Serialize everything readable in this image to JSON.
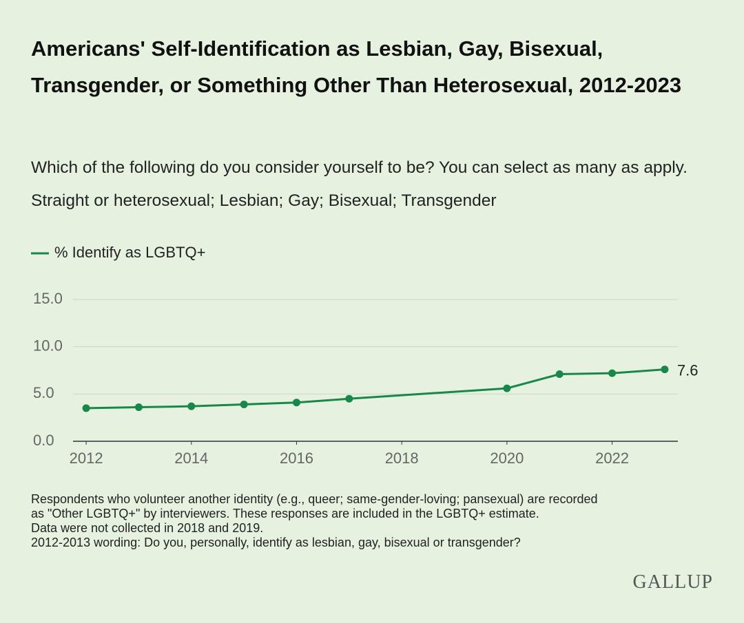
{
  "chart_data": {
    "type": "line",
    "title": "Americans' Self-Identification as Lesbian, Gay, Bisexual, Transgender, or Something Other Than Heterosexual, 2012-2023",
    "subtitle": "Which of the following do you consider yourself to be? You can select as many as apply. Straight or heterosexual; Lesbian; Gay; Bisexual; Transgender",
    "x": [
      2012,
      2013,
      2014,
      2015,
      2016,
      2017,
      2020,
      2021,
      2022,
      2023
    ],
    "series": [
      {
        "name": "% Identify as LGBTQ+",
        "color": "#18874a",
        "values": [
          3.5,
          3.6,
          3.7,
          3.9,
          4.1,
          4.5,
          5.6,
          7.1,
          7.2,
          7.6
        ]
      }
    ],
    "xlim": [
      2011.75,
      2023.25
    ],
    "xticks": [
      2012,
      2014,
      2016,
      2018,
      2020,
      2022
    ],
    "ylim": [
      0,
      15
    ],
    "yticks": [
      {
        "value": 0,
        "label": "0.0"
      },
      {
        "value": 5,
        "label": "5.0"
      },
      {
        "value": 10,
        "label": "10.0"
      },
      {
        "value": 15,
        "label": "15.0"
      }
    ],
    "grid": true,
    "legend": "top-left",
    "notes": [
      "Respondents who volunteer another identity (e.g., queer; same-gender-loving; pansexual) are recorded",
      "as \"Other LGBTQ+\" by interviewers. These responses are included in the LGBTQ+ estimate.",
      "Data were not collected in 2018 and 2019.",
      "2012-2013 wording: Do you, personally, identify as lesbian, gay, bisexual or transgender?"
    ],
    "source": "GALLUP"
  }
}
